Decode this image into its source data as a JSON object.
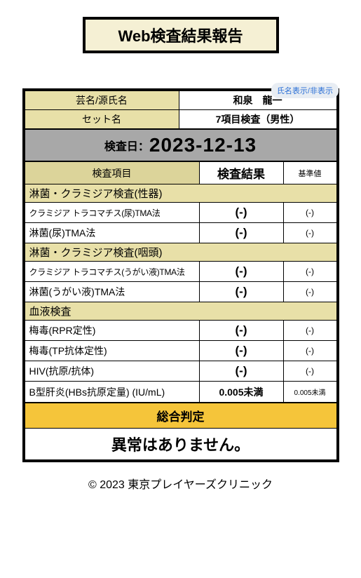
{
  "title": "Web検査結果報告",
  "name_toggle": "氏名表示/非表示",
  "header": {
    "name_label": "芸名/源氏名",
    "name_value": "和泉　龍一",
    "set_label": "セット名",
    "set_value": "7項目検査（男性）"
  },
  "date": {
    "label": "検査日：",
    "value": "2023-12-13"
  },
  "columns": {
    "item": "検査項目",
    "result": "検査結果",
    "ref": "基準値"
  },
  "sections": [
    {
      "title": "淋菌・クラミジア検査(性器)",
      "rows": [
        {
          "item": "クラミジア トラコマチス(尿)TMA法",
          "result": "(-)",
          "ref": "(-)",
          "small": true
        },
        {
          "item": "淋菌(尿)TMA法",
          "result": "(-)",
          "ref": "(-)"
        }
      ]
    },
    {
      "title": "淋菌・クラミジア検査(咽頭)",
      "rows": [
        {
          "item": "クラミジア トラコマチス(うがい液)TMA法",
          "result": "(-)",
          "ref": "(-)",
          "small": true
        },
        {
          "item": "淋菌(うがい液)TMA法",
          "result": "(-)",
          "ref": "(-)"
        }
      ]
    },
    {
      "title": "血液検査",
      "rows": [
        {
          "item": "梅毒(RPR定性)",
          "result": "(-)",
          "ref": "(-)"
        },
        {
          "item": "梅毒(TP抗体定性)",
          "result": "(-)",
          "ref": "(-)"
        },
        {
          "item": "HIV(抗原/抗体)",
          "result": "(-)",
          "ref": "(-)"
        },
        {
          "item": "B型肝炎(HBs抗原定量) (IU/mL)",
          "result": "0.005未満",
          "ref": "0.005未満",
          "smallResult": true
        }
      ]
    }
  ],
  "judgement": {
    "label": "総合判定",
    "value": "異常はありません。"
  },
  "footer": "© 2023 東京プレイヤーズクリニック"
}
